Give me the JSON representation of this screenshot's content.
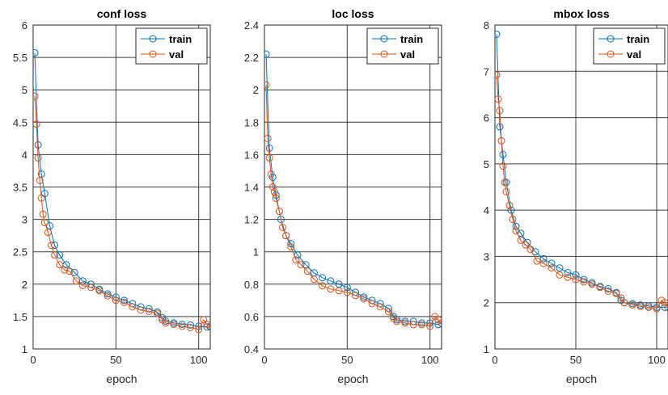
{
  "chart_data": [
    {
      "type": "line",
      "title": "conf loss",
      "xlabel": "epoch",
      "ylabel": "",
      "xlim": [
        0,
        107
      ],
      "ylim": [
        1,
        6
      ],
      "xticks": [
        "0",
        "50",
        "100"
      ],
      "yticks": [
        "1",
        "1.5",
        "2",
        "2.5",
        "3",
        "3.5",
        "4",
        "4.5",
        "5",
        "5.5",
        "6"
      ],
      "grid": true,
      "legend": "top-right",
      "series": [
        {
          "name": "train",
          "color": "#0072BD",
          "marker": "circle",
          "x": [
            1,
            3,
            5,
            7,
            10,
            13,
            16,
            20,
            25,
            30,
            35,
            40,
            45,
            50,
            55,
            60,
            65,
            70,
            75,
            78,
            80,
            85,
            90,
            95,
            100,
            105,
            107
          ],
          "y": [
            5.57,
            4.15,
            3.7,
            3.4,
            2.9,
            2.6,
            2.45,
            2.3,
            2.18,
            2.05,
            2.0,
            1.92,
            1.85,
            1.8,
            1.75,
            1.7,
            1.65,
            1.62,
            1.57,
            1.48,
            1.43,
            1.4,
            1.38,
            1.37,
            1.35,
            1.34,
            1.34
          ]
        },
        {
          "name": "val",
          "color": "#D95319",
          "marker": "circle",
          "x": [
            1,
            2,
            3,
            4,
            5,
            6,
            7,
            9,
            11,
            13,
            16,
            19,
            22,
            26,
            30,
            35,
            40,
            45,
            50,
            55,
            60,
            65,
            70,
            75,
            78,
            80,
            85,
            90,
            95,
            100,
            103,
            105,
            107
          ],
          "y": [
            4.9,
            4.47,
            3.95,
            3.6,
            3.33,
            3.08,
            2.95,
            2.8,
            2.6,
            2.45,
            2.3,
            2.22,
            2.2,
            2.05,
            1.98,
            1.95,
            1.9,
            1.82,
            1.75,
            1.72,
            1.65,
            1.6,
            1.58,
            1.55,
            1.45,
            1.4,
            1.38,
            1.35,
            1.33,
            1.3,
            1.45,
            1.38,
            1.35
          ]
        }
      ]
    },
    {
      "type": "line",
      "title": "loc loss",
      "xlabel": "epoch",
      "ylabel": "",
      "xlim": [
        0,
        107
      ],
      "ylim": [
        0.4,
        2.4
      ],
      "xticks": [
        "0",
        "50",
        "100"
      ],
      "yticks": [
        "0.4",
        "0.6",
        "0.8",
        "1",
        "1.2",
        "1.4",
        "1.6",
        "1.8",
        "2",
        "2.2",
        "2.4"
      ],
      "grid": true,
      "legend": "top-right",
      "series": [
        {
          "name": "train",
          "color": "#0072BD",
          "marker": "circle",
          "x": [
            1,
            3,
            5,
            7,
            10,
            13,
            16,
            20,
            25,
            30,
            35,
            40,
            45,
            50,
            55,
            60,
            65,
            70,
            75,
            78,
            80,
            85,
            90,
            95,
            100,
            105,
            107
          ],
          "y": [
            2.22,
            1.64,
            1.46,
            1.35,
            1.2,
            1.1,
            1.05,
            0.98,
            0.92,
            0.87,
            0.84,
            0.82,
            0.8,
            0.78,
            0.75,
            0.72,
            0.7,
            0.68,
            0.65,
            0.6,
            0.58,
            0.57,
            0.57,
            0.56,
            0.56,
            0.55,
            0.56
          ]
        },
        {
          "name": "val",
          "color": "#D95319",
          "marker": "circle",
          "x": [
            1,
            2,
            3,
            4,
            5,
            6,
            7,
            9,
            11,
            13,
            16,
            19,
            22,
            26,
            30,
            35,
            40,
            45,
            50,
            55,
            60,
            65,
            70,
            75,
            78,
            80,
            85,
            90,
            95,
            100,
            103,
            105,
            107
          ],
          "y": [
            2.03,
            1.7,
            1.58,
            1.48,
            1.4,
            1.37,
            1.33,
            1.25,
            1.15,
            1.1,
            1.03,
            0.95,
            0.92,
            0.88,
            0.83,
            0.79,
            0.77,
            0.76,
            0.75,
            0.73,
            0.71,
            0.68,
            0.66,
            0.63,
            0.59,
            0.57,
            0.56,
            0.55,
            0.55,
            0.54,
            0.6,
            0.58,
            0.56
          ]
        }
      ]
    },
    {
      "type": "line",
      "title": "mbox loss",
      "xlabel": "epoch",
      "ylabel": "",
      "xlim": [
        0,
        107
      ],
      "ylim": [
        1,
        8
      ],
      "xticks": [
        "0",
        "50",
        "100"
      ],
      "yticks": [
        "1",
        "2",
        "3",
        "4",
        "5",
        "6",
        "7",
        "8"
      ],
      "grid": true,
      "legend": "top-right",
      "series": [
        {
          "name": "train",
          "color": "#0072BD",
          "marker": "circle",
          "x": [
            1,
            3,
            5,
            7,
            10,
            13,
            16,
            20,
            25,
            30,
            35,
            40,
            45,
            50,
            55,
            60,
            65,
            70,
            75,
            78,
            80,
            85,
            90,
            95,
            100,
            105,
            107
          ],
          "y": [
            7.8,
            5.8,
            5.2,
            4.6,
            4.0,
            3.65,
            3.5,
            3.3,
            3.1,
            2.95,
            2.85,
            2.75,
            2.65,
            2.6,
            2.5,
            2.43,
            2.35,
            2.3,
            2.22,
            2.05,
            2.0,
            1.98,
            1.95,
            1.93,
            1.9,
            1.9,
            1.9
          ]
        },
        {
          "name": "val",
          "color": "#D95319",
          "marker": "circle",
          "x": [
            1,
            2,
            3,
            4,
            5,
            6,
            7,
            9,
            11,
            13,
            16,
            19,
            22,
            26,
            30,
            35,
            40,
            45,
            50,
            55,
            60,
            65,
            70,
            75,
            78,
            80,
            85,
            90,
            95,
            100,
            103,
            105,
            107
          ],
          "y": [
            6.92,
            6.4,
            6.15,
            5.5,
            4.95,
            4.6,
            4.4,
            4.1,
            3.8,
            3.55,
            3.35,
            3.25,
            3.15,
            2.9,
            2.85,
            2.75,
            2.6,
            2.55,
            2.5,
            2.45,
            2.4,
            2.33,
            2.25,
            2.2,
            2.1,
            2.0,
            1.95,
            1.92,
            1.9,
            1.87,
            2.05,
            2.0,
            1.9
          ]
        }
      ]
    }
  ]
}
